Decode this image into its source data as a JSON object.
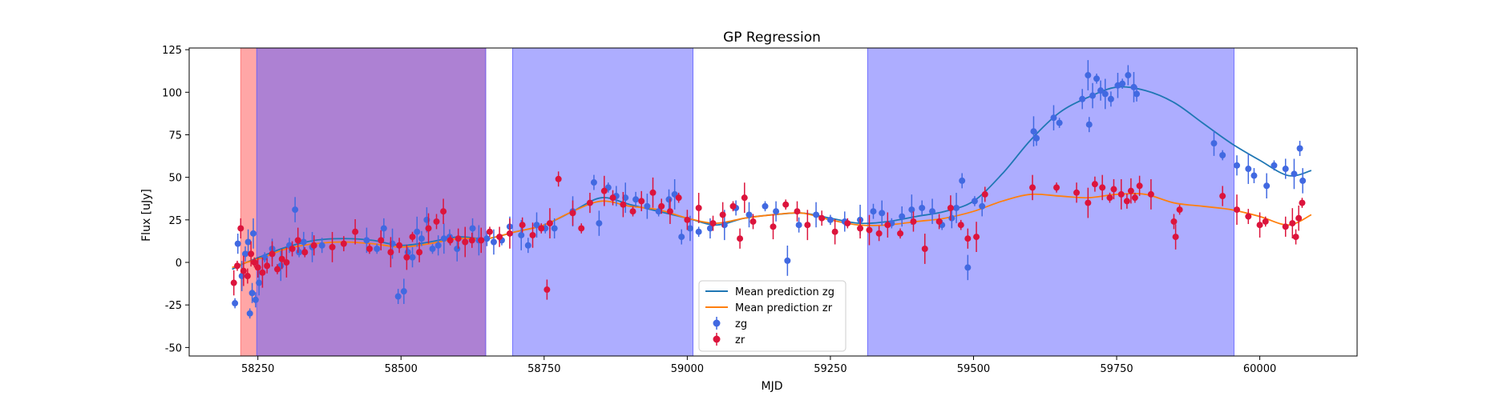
{
  "chart_data": {
    "type": "scatter",
    "title": "GP Regression",
    "xlabel": "MJD",
    "ylabel": "Flux [uJy]",
    "xlim": [
      58130,
      60170
    ],
    "ylim": [
      -55,
      126
    ],
    "x_ticks": [
      58250,
      58500,
      58750,
      59000,
      59250,
      59500,
      59750,
      60000
    ],
    "y_ticks": [
      -50,
      -25,
      0,
      25,
      50,
      75,
      100,
      125
    ],
    "grid": false,
    "legend_position": "lower center",
    "shaded_regions": [
      {
        "x0": 58220,
        "x1": 58648,
        "color": "#ff6b6b",
        "opacity": 0.6
      },
      {
        "x0": 58248,
        "x1": 58648,
        "color": "#5b5bff",
        "opacity": 0.5
      },
      {
        "x0": 58695,
        "x1": 59010,
        "color": "#5b5bff",
        "opacity": 0.5
      },
      {
        "x0": 59315,
        "x1": 59955,
        "color": "#5b5bff",
        "opacity": 0.5
      }
    ],
    "lines": [
      {
        "name": "Mean prediction zg",
        "color": "#1f77b4",
        "x": [
          58205,
          58230,
          58260,
          58300,
          58350,
          58400,
          58450,
          58500,
          58550,
          58600,
          58650,
          58700,
          58750,
          58800,
          58850,
          58900,
          58950,
          59000,
          59050,
          59100,
          59150,
          59200,
          59250,
          59300,
          59350,
          59400,
          59450,
          59500,
          59550,
          59600,
          59650,
          59700,
          59750,
          59800,
          59850,
          59900,
          59950,
          60000,
          60050,
          60090
        ],
        "y": [
          -4,
          0,
          4,
          9,
          13,
          14,
          13,
          10,
          12,
          15,
          14,
          18,
          22,
          30,
          38,
          34,
          30,
          26,
          22,
          26,
          28,
          29,
          26,
          23,
          24,
          27,
          30,
          36,
          52,
          72,
          88,
          97,
          103,
          101,
          94,
          82,
          70,
          60,
          51,
          54
        ]
      },
      {
        "name": "Mean prediction zr",
        "color": "#ff7f0e",
        "x": [
          58205,
          58230,
          58260,
          58300,
          58350,
          58400,
          58450,
          58500,
          58550,
          58600,
          58650,
          58700,
          58750,
          58800,
          58850,
          58900,
          58950,
          59000,
          59050,
          59100,
          59150,
          59200,
          59250,
          59300,
          59350,
          59400,
          59450,
          59500,
          59550,
          59600,
          59650,
          59700,
          59750,
          59800,
          59850,
          59900,
          59950,
          60000,
          60050,
          60090
        ],
        "y": [
          -3,
          0,
          3,
          8,
          11,
          12,
          11,
          9,
          11,
          14,
          14,
          18,
          22,
          30,
          36,
          33,
          31,
          26,
          23,
          26,
          28,
          29,
          25,
          22,
          22,
          24,
          26,
          30,
          36,
          40,
          39,
          38,
          40,
          40,
          35,
          33,
          31,
          27,
          22,
          28
        ]
      }
    ],
    "series": [
      {
        "name": "zg",
        "color": "#4169e1",
        "x": [
          58210,
          58215,
          58222,
          58228,
          58233,
          58236,
          58240,
          58242,
          58246,
          58252,
          58262,
          58275,
          58290,
          58305,
          58315,
          58322,
          58330,
          58345,
          58362,
          58440,
          58458,
          58470,
          58485,
          58495,
          58505,
          58512,
          58520,
          58528,
          58536,
          58545,
          58555,
          58565,
          58575,
          58585,
          58598,
          58612,
          58625,
          58636,
          58650,
          58662,
          58676,
          58690,
          58710,
          58722,
          58737,
          58752,
          58768,
          58800,
          58837,
          58846,
          58862,
          58876,
          58892,
          58910,
          58930,
          58950,
          58968,
          58978,
          58990,
          59005,
          59020,
          59040,
          59065,
          59085,
          59108,
          59136,
          59155,
          59175,
          59195,
          59225,
          59250,
          59275,
          59302,
          59325,
          59340,
          59357,
          59375,
          59392,
          59410,
          59428,
          59445,
          59462,
          59470,
          59480,
          59490,
          59502,
          59515,
          59605,
          59610,
          59640,
          59650,
          59690,
          59700,
          59702,
          59708,
          59715,
          59722,
          59730,
          59740,
          59752,
          59760,
          59770,
          59780,
          59785,
          59920,
          59935,
          59960,
          59980,
          59990,
          60012,
          60025,
          60045,
          60060,
          60070,
          60075
        ],
        "y": [
          -24,
          11,
          -8,
          5,
          12,
          -30,
          -18,
          17,
          -22,
          -12,
          3,
          8,
          -2,
          10,
          31,
          6,
          12,
          9,
          10,
          13,
          8,
          20,
          11,
          -20,
          -17,
          6,
          3,
          18,
          14,
          25,
          8,
          10,
          14,
          15,
          8,
          12,
          20,
          13,
          14,
          12,
          13,
          21,
          16,
          10,
          22,
          20,
          20,
          30,
          47,
          23,
          44,
          39,
          38,
          37,
          33,
          30,
          37,
          40,
          15,
          20,
          18,
          20,
          22,
          32,
          28,
          33,
          30,
          1,
          22,
          28,
          25,
          24,
          25,
          30,
          29,
          23,
          27,
          31,
          32,
          30,
          22,
          26,
          32,
          48,
          -3,
          36,
          33,
          77,
          73,
          85,
          82,
          96,
          110,
          81,
          98,
          108,
          101,
          99,
          96,
          104,
          105,
          110,
          103,
          99,
          70,
          63,
          57,
          55,
          51,
          45,
          57,
          55,
          52,
          67,
          48
        ]
      },
      {
        "name": "zr",
        "color": "#dc143c",
        "x": [
          58208,
          58214,
          58220,
          58225,
          58232,
          58238,
          58244,
          58250,
          58258,
          58266,
          58275,
          58284,
          58292,
          58300,
          58310,
          58320,
          58332,
          58348,
          58380,
          58400,
          58420,
          58445,
          58465,
          58482,
          58497,
          58510,
          58520,
          58532,
          58548,
          58562,
          58574,
          58586,
          58600,
          58612,
          58624,
          58640,
          58655,
          58672,
          58690,
          58712,
          58730,
          58745,
          58755,
          58760,
          58775,
          58800,
          58815,
          58830,
          58855,
          58870,
          58888,
          58905,
          58920,
          58940,
          58955,
          58970,
          58985,
          59000,
          59020,
          59045,
          59062,
          59080,
          59092,
          59100,
          59115,
          59150,
          59172,
          59192,
          59210,
          59235,
          59258,
          59280,
          59302,
          59318,
          59335,
          59350,
          59372,
          59395,
          59415,
          59440,
          59460,
          59478,
          59490,
          59505,
          59520,
          59603,
          59645,
          59680,
          59700,
          59712,
          59725,
          59738,
          59745,
          59758,
          59768,
          59775,
          59782,
          59790,
          59810,
          59850,
          59853,
          59860,
          59935,
          59960,
          59980,
          60000,
          60010,
          60045,
          60057,
          60063,
          60068,
          60074
        ],
        "y": [
          -12,
          -2,
          20,
          -5,
          -8,
          5,
          0,
          -3,
          -6,
          -2,
          5,
          -4,
          2,
          0,
          8,
          13,
          6,
          10,
          9,
          11,
          18,
          8,
          13,
          6,
          10,
          3,
          15,
          6,
          20,
          24,
          30,
          13,
          14,
          12,
          13,
          13,
          18,
          15,
          17,
          22,
          16,
          20,
          -16,
          23,
          49,
          29,
          20,
          35,
          42,
          38,
          34,
          30,
          36,
          41,
          33,
          30,
          38,
          25,
          32,
          23,
          28,
          33,
          14,
          38,
          24,
          21,
          34,
          30,
          22,
          26,
          18,
          23,
          20,
          19,
          17,
          22,
          17,
          24,
          8,
          24,
          32,
          22,
          14,
          15,
          40,
          44,
          44,
          41,
          35,
          46,
          44,
          38,
          43,
          40,
          36,
          42,
          38,
          45,
          40,
          24,
          15,
          31,
          39,
          31,
          27,
          22,
          24,
          21,
          23,
          15,
          26,
          35
        ]
      }
    ],
    "legend": [
      {
        "label": "Mean prediction zg",
        "kind": "line",
        "color": "#1f77b4"
      },
      {
        "label": "Mean prediction zr",
        "kind": "line",
        "color": "#ff7f0e"
      },
      {
        "label": "zg",
        "kind": "marker",
        "color": "#4169e1"
      },
      {
        "label": "zr",
        "kind": "marker",
        "color": "#dc143c"
      }
    ]
  }
}
